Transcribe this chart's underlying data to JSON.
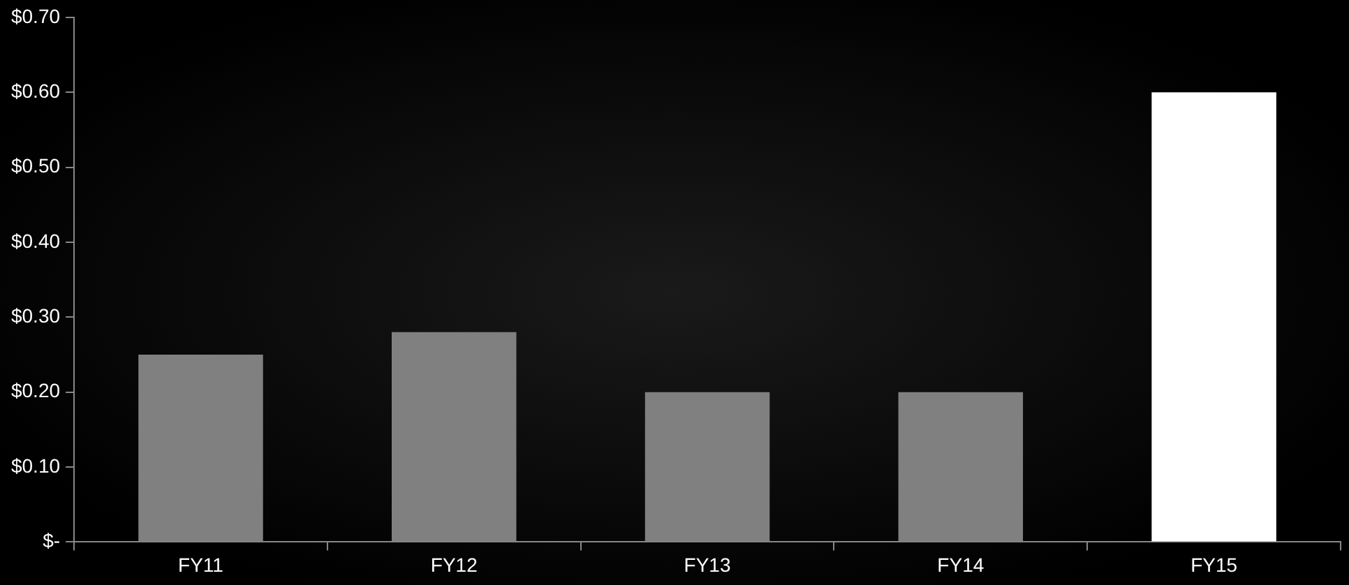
{
  "chart_data": {
    "type": "bar",
    "categories": [
      "FY11",
      "FY12",
      "FY13",
      "FY14",
      "FY15"
    ],
    "values": [
      0.25,
      0.28,
      0.2,
      0.2,
      0.6
    ],
    "colors": [
      "#808080",
      "#808080",
      "#808080",
      "#808080",
      "#ffffff"
    ],
    "ylim": [
      0,
      0.7
    ],
    "yticks": [
      {
        "value": 0,
        "label": "$-"
      },
      {
        "value": 0.1,
        "label": "$0.10"
      },
      {
        "value": 0.2,
        "label": "$0.20"
      },
      {
        "value": 0.3,
        "label": "$0.30"
      },
      {
        "value": 0.4,
        "label": "$0.40"
      },
      {
        "value": 0.5,
        "label": "$0.50"
      },
      {
        "value": 0.6,
        "label": "$0.60"
      },
      {
        "value": 0.7,
        "label": "$0.70"
      }
    ],
    "grid": false,
    "legend": false
  }
}
